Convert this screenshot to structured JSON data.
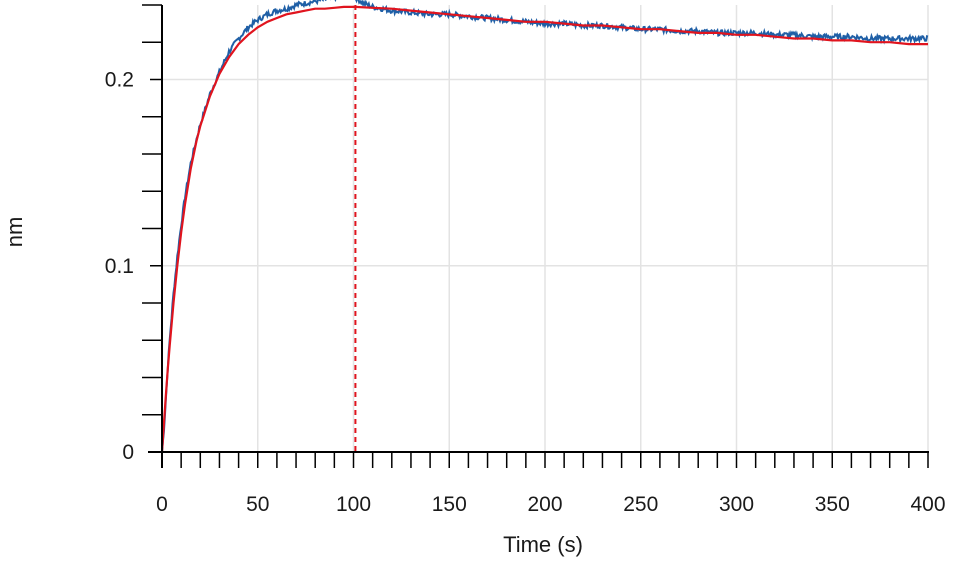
{
  "chart_data": {
    "type": "line",
    "xlabel": "Time (s)",
    "ylabel": "nm",
    "xlim": [
      0,
      400
    ],
    "ylim": [
      0,
      0.24
    ],
    "xticks": [
      0,
      50,
      100,
      150,
      200,
      250,
      300,
      350,
      400
    ],
    "xtick_labels": [
      "0",
      "50",
      "100",
      "150",
      "200",
      "250",
      "300",
      "350",
      "400"
    ],
    "yticks": [
      0,
      0.1,
      0.2
    ],
    "ytick_labels": [
      "0",
      "0.1",
      "0.2"
    ],
    "grid": true,
    "legend": "none",
    "vertical_markers": [
      {
        "x": 0,
        "style": "dashed",
        "color": "#e0141e"
      },
      {
        "x": 101,
        "style": "dashed",
        "color": "#e0141e"
      }
    ],
    "series": [
      {
        "color": "#1f5fa6",
        "style": "noisy-line",
        "x": [
          0,
          1,
          2,
          3,
          4,
          6,
          8,
          10,
          12,
          15,
          18,
          20,
          25,
          30,
          35,
          40,
          45,
          50,
          55,
          60,
          65,
          70,
          75,
          80,
          85,
          90,
          95,
          100,
          105,
          110,
          115,
          120,
          130,
          140,
          150,
          160,
          170,
          180,
          190,
          200,
          210,
          220,
          230,
          240,
          250,
          260,
          270,
          280,
          290,
          300,
          310,
          320,
          330,
          340,
          350,
          360,
          370,
          380,
          390,
          400
        ],
        "values": [
          0.0,
          0.012,
          0.028,
          0.045,
          0.06,
          0.085,
          0.105,
          0.122,
          0.137,
          0.155,
          0.168,
          0.176,
          0.192,
          0.204,
          0.215,
          0.222,
          0.228,
          0.232,
          0.235,
          0.237,
          0.238,
          0.24,
          0.241,
          0.242,
          0.243,
          0.244,
          0.246,
          0.245,
          0.241,
          0.239,
          0.238,
          0.237,
          0.236,
          0.235,
          0.235,
          0.234,
          0.233,
          0.232,
          0.231,
          0.23,
          0.23,
          0.229,
          0.229,
          0.228,
          0.227,
          0.227,
          0.226,
          0.226,
          0.225,
          0.225,
          0.225,
          0.224,
          0.224,
          0.223,
          0.223,
          0.223,
          0.222,
          0.222,
          0.222,
          0.222
        ]
      },
      {
        "color": "#e0141e",
        "style": "line",
        "x": [
          0,
          1,
          2,
          3,
          4,
          6,
          8,
          10,
          12,
          15,
          18,
          20,
          25,
          30,
          35,
          40,
          45,
          50,
          55,
          60,
          65,
          70,
          75,
          80,
          85,
          90,
          95,
          100,
          101,
          110,
          120,
          130,
          140,
          150,
          160,
          170,
          180,
          190,
          200,
          210,
          220,
          230,
          240,
          250,
          260,
          270,
          280,
          290,
          300,
          310,
          320,
          330,
          340,
          350,
          360,
          370,
          380,
          390,
          400
        ],
        "values": [
          0.0,
          0.015,
          0.03,
          0.044,
          0.057,
          0.08,
          0.1,
          0.118,
          0.133,
          0.152,
          0.167,
          0.175,
          0.191,
          0.203,
          0.212,
          0.219,
          0.224,
          0.228,
          0.231,
          0.233,
          0.235,
          0.236,
          0.237,
          0.238,
          0.238,
          0.2385,
          0.239,
          0.239,
          0.239,
          0.2385,
          0.238,
          0.237,
          0.236,
          0.235,
          0.234,
          0.233,
          0.232,
          0.231,
          0.231,
          0.23,
          0.229,
          0.229,
          0.228,
          0.227,
          0.227,
          0.226,
          0.225,
          0.225,
          0.224,
          0.224,
          0.223,
          0.222,
          0.222,
          0.221,
          0.221,
          0.22,
          0.22,
          0.219,
          0.219
        ]
      }
    ]
  }
}
